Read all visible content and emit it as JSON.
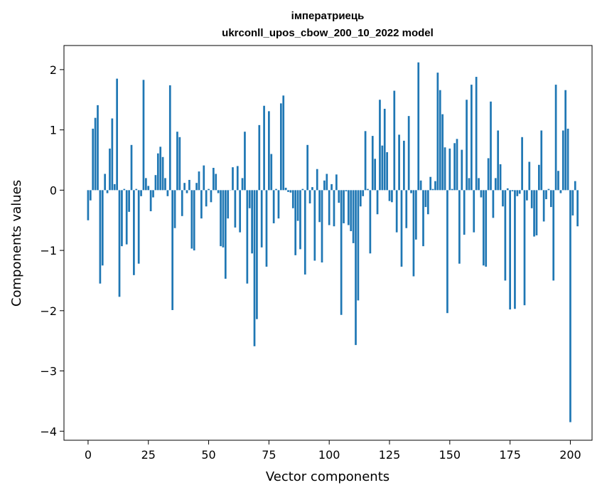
{
  "chart_data": {
    "type": "bar",
    "title": "імператриець",
    "subtitle": "ukrconll_upos_cbow_200_10_2022 model",
    "xlabel": "Vector components",
    "ylabel": "Components values",
    "xlim": [
      -10,
      209
    ],
    "ylim": [
      -4.15,
      2.4
    ],
    "xticks": [
      0,
      25,
      50,
      75,
      100,
      125,
      150,
      175,
      200
    ],
    "yticks": [
      -4,
      -3,
      -2,
      -1,
      0,
      1,
      2
    ],
    "bar_color": "#1f77b4",
    "values": [
      -0.5,
      -0.17,
      1.02,
      1.2,
      1.41,
      -1.55,
      -1.25,
      0.27,
      -0.05,
      0.69,
      1.19,
      0.1,
      1.85,
      -1.77,
      -0.93,
      0.02,
      -0.9,
      -0.36,
      0.75,
      -1.41,
      0.02,
      -1.22,
      -0.1,
      1.83,
      0.2,
      0.07,
      -0.35,
      -0.12,
      0.25,
      0.61,
      0.72,
      0.55,
      0.2,
      -0.1,
      1.74,
      -1.99,
      -0.63,
      0.97,
      0.88,
      -0.43,
      0.12,
      -0.05,
      0.17,
      -0.97,
      -1.0,
      0.12,
      0.31,
      -0.47,
      0.41,
      -0.27,
      0.02,
      -0.2,
      0.37,
      0.27,
      -0.05,
      -0.93,
      -0.95,
      -1.47,
      -0.47,
      0.0,
      0.38,
      -0.62,
      0.4,
      -0.7,
      0.2,
      0.97,
      -1.55,
      -0.3,
      -1.05,
      -2.59,
      -2.14,
      1.08,
      -0.95,
      1.4,
      -1.27,
      1.31,
      0.6,
      -0.55,
      0.02,
      -0.47,
      1.44,
      1.57,
      0.04,
      -0.03,
      -0.04,
      -0.3,
      -1.08,
      -0.51,
      -0.98,
      0.02,
      -1.4,
      0.75,
      -0.22,
      0.05,
      -1.17,
      0.35,
      -0.53,
      -1.2,
      0.16,
      0.27,
      -0.58,
      0.1,
      -0.6,
      0.26,
      -0.21,
      -2.07,
      -0.55,
      -0.02,
      -0.58,
      -0.68,
      -0.88,
      -2.57,
      -1.83,
      -0.27,
      -0.1,
      0.98,
      0.02,
      -1.05,
      0.9,
      0.52,
      -0.4,
      1.5,
      0.74,
      1.35,
      0.63,
      -0.18,
      -0.2,
      1.65,
      -0.7,
      0.92,
      -1.27,
      0.82,
      -0.63,
      1.23,
      -0.05,
      -1.43,
      -0.82,
      2.12,
      0.16,
      -0.93,
      -0.28,
      -0.4,
      0.22,
      0.02,
      0.15,
      1.95,
      1.66,
      1.26,
      0.71,
      -2.04,
      0.69,
      0.02,
      0.78,
      0.85,
      -1.22,
      0.67,
      -0.74,
      1.5,
      0.2,
      1.75,
      -0.7,
      1.88,
      0.2,
      -0.12,
      -1.25,
      -1.27,
      0.53,
      1.47,
      -0.46,
      0.2,
      0.99,
      0.43,
      -0.27,
      -1.5,
      0.03,
      -1.98,
      -0.02,
      -1.97,
      -0.1,
      -0.06,
      0.88,
      -1.91,
      -0.17,
      0.47,
      -0.3,
      -0.77,
      -0.75,
      0.42,
      0.99,
      -0.52,
      -0.15,
      0.02,
      -0.28,
      -1.5,
      1.75,
      0.32,
      -0.05,
      0.99,
      1.66,
      1.02,
      -3.85,
      -0.42,
      0.15,
      -0.6
    ]
  }
}
